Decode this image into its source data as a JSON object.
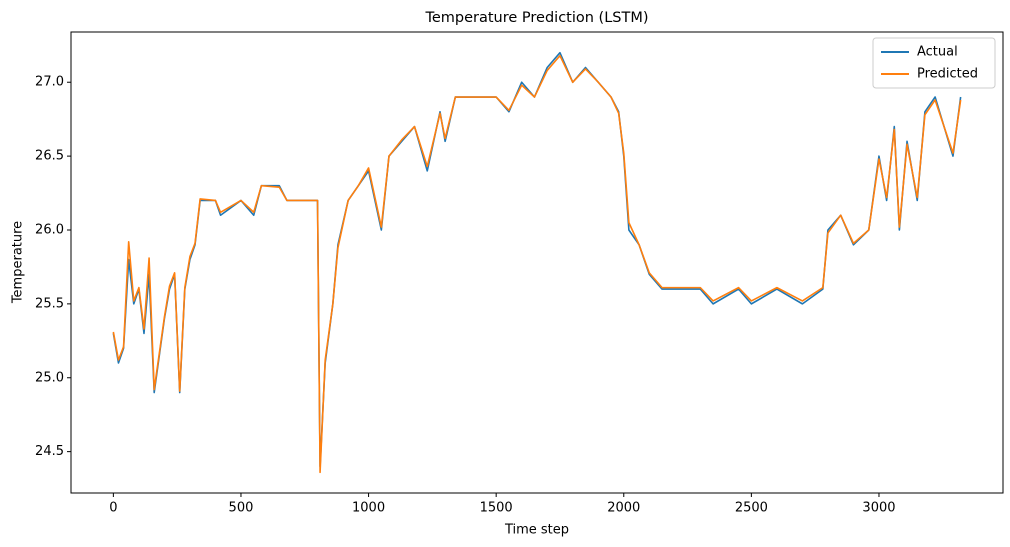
{
  "chart_data": {
    "type": "line",
    "title": "Temperature Prediction (LSTM)",
    "xlabel": "Time step",
    "ylabel": "Temperature",
    "x": [
      0,
      20,
      40,
      60,
      80,
      100,
      120,
      140,
      160,
      200,
      220,
      240,
      260,
      280,
      300,
      320,
      340,
      400,
      420,
      500,
      550,
      580,
      650,
      680,
      780,
      800,
      810,
      830,
      860,
      880,
      920,
      960,
      1000,
      1050,
      1080,
      1130,
      1180,
      1230,
      1280,
      1300,
      1340,
      1500,
      1550,
      1600,
      1650,
      1700,
      1750,
      1800,
      1850,
      1900,
      1950,
      1980,
      2000,
      2020,
      2060,
      2100,
      2150,
      2300,
      2350,
      2450,
      2500,
      2600,
      2700,
      2780,
      2800,
      2850,
      2900,
      2960,
      3000,
      3030,
      3060,
      3080,
      3110,
      3150,
      3180,
      3220,
      3290,
      3320
    ],
    "series": [
      {
        "name": "Actual",
        "color": "#1f77b4",
        "values": [
          25.3,
          25.1,
          25.2,
          25.8,
          25.5,
          25.6,
          25.3,
          25.7,
          24.9,
          25.4,
          25.6,
          25.7,
          24.9,
          25.6,
          25.8,
          25.9,
          26.2,
          26.2,
          26.1,
          26.2,
          26.1,
          26.3,
          26.3,
          26.2,
          26.2,
          26.2,
          24.4,
          25.1,
          25.5,
          25.9,
          26.2,
          26.3,
          26.4,
          26.0,
          26.5,
          26.6,
          26.7,
          26.4,
          26.8,
          26.6,
          26.9,
          26.9,
          26.8,
          27.0,
          26.9,
          27.1,
          27.2,
          27.0,
          27.1,
          27.0,
          26.9,
          26.8,
          26.5,
          26.0,
          25.9,
          25.7,
          25.6,
          25.6,
          25.5,
          25.6,
          25.5,
          25.6,
          25.5,
          25.6,
          26.0,
          26.1,
          25.9,
          26.0,
          26.5,
          26.2,
          26.7,
          26.0,
          26.6,
          26.2,
          26.8,
          26.9,
          26.5,
          26.9
        ]
      },
      {
        "name": "Predicted",
        "color": "#ff7f0e",
        "values": [
          25.31,
          25.12,
          25.21,
          25.92,
          25.52,
          25.61,
          25.33,
          25.81,
          24.92,
          25.41,
          25.62,
          25.71,
          24.91,
          25.61,
          25.82,
          25.91,
          26.21,
          26.2,
          26.12,
          26.2,
          26.12,
          26.3,
          26.29,
          26.2,
          26.2,
          26.2,
          24.36,
          25.12,
          25.5,
          25.88,
          26.2,
          26.3,
          26.42,
          26.02,
          26.5,
          26.61,
          26.7,
          26.43,
          26.79,
          26.62,
          26.9,
          26.9,
          26.81,
          26.98,
          26.9,
          27.08,
          27.18,
          27.0,
          27.09,
          27.0,
          26.9,
          26.79,
          26.52,
          26.05,
          25.9,
          25.71,
          25.61,
          25.61,
          25.52,
          25.61,
          25.52,
          25.61,
          25.52,
          25.61,
          25.98,
          26.1,
          25.91,
          26.0,
          26.48,
          26.22,
          26.68,
          26.02,
          26.58,
          26.22,
          26.78,
          26.88,
          26.52,
          26.88
        ]
      }
    ],
    "xlim": [
      -166,
      3486
    ],
    "ylim": [
      24.22,
      27.34
    ],
    "xticks": [
      0,
      500,
      1000,
      1500,
      2000,
      2500,
      3000
    ],
    "yticks": [
      24.5,
      {
        "value": 25,
        "label": "25.0"
      },
      25.5,
      {
        "value": 26,
        "label": "26.0"
      },
      26.5,
      {
        "value": 27,
        "label": "27.0"
      }
    ],
    "legend": "upper right"
  }
}
